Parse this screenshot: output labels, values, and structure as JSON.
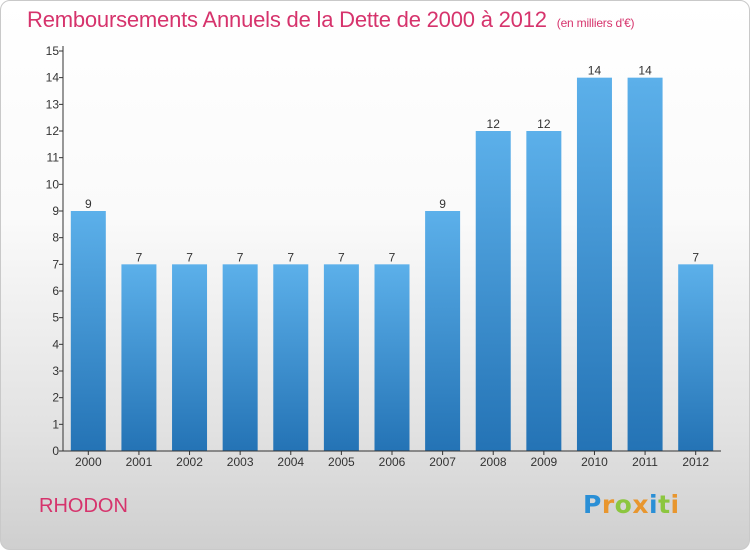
{
  "header": {
    "title": "Remboursements Annuels de la Dette de 2000 à 2012",
    "subtitle": "(en milliers d'€)"
  },
  "footer": {
    "commune": "RHODON",
    "logo_letters": [
      {
        "char": "P",
        "color": "#2a8fd6"
      },
      {
        "char": "r",
        "color": "#e8962e"
      },
      {
        "char": "o",
        "color": "#8cc63f"
      },
      {
        "char": "x",
        "color": "#e8962e"
      },
      {
        "char": "i",
        "color": "#2a8fd6"
      },
      {
        "char": "t",
        "color": "#8cc63f"
      },
      {
        "char": "i",
        "color": "#e8962e"
      }
    ]
  },
  "chart_data": {
    "type": "bar",
    "categories": [
      "2000",
      "2001",
      "2002",
      "2003",
      "2004",
      "2005",
      "2006",
      "2007",
      "2008",
      "2009",
      "2010",
      "2011",
      "2012"
    ],
    "values": [
      9,
      7,
      7,
      7,
      7,
      7,
      7,
      9,
      12,
      12,
      14,
      14,
      7
    ],
    "data_labels": [
      "9",
      "7",
      "7",
      "7",
      "7",
      "7",
      "7",
      "9",
      "12",
      "12",
      "14",
      "14",
      "7"
    ],
    "yticks": [
      "0",
      "1",
      "2",
      "3",
      "4",
      "5",
      "6",
      "7",
      "8",
      "9",
      "10",
      "11",
      "12",
      "13",
      "14",
      "15"
    ],
    "ylim": [
      0,
      15
    ],
    "grid": false,
    "colors": {
      "bar_top": "#5cb0ea",
      "bar_bottom": "#2473b5",
      "axis": "#333333",
      "text": "#333333"
    }
  }
}
